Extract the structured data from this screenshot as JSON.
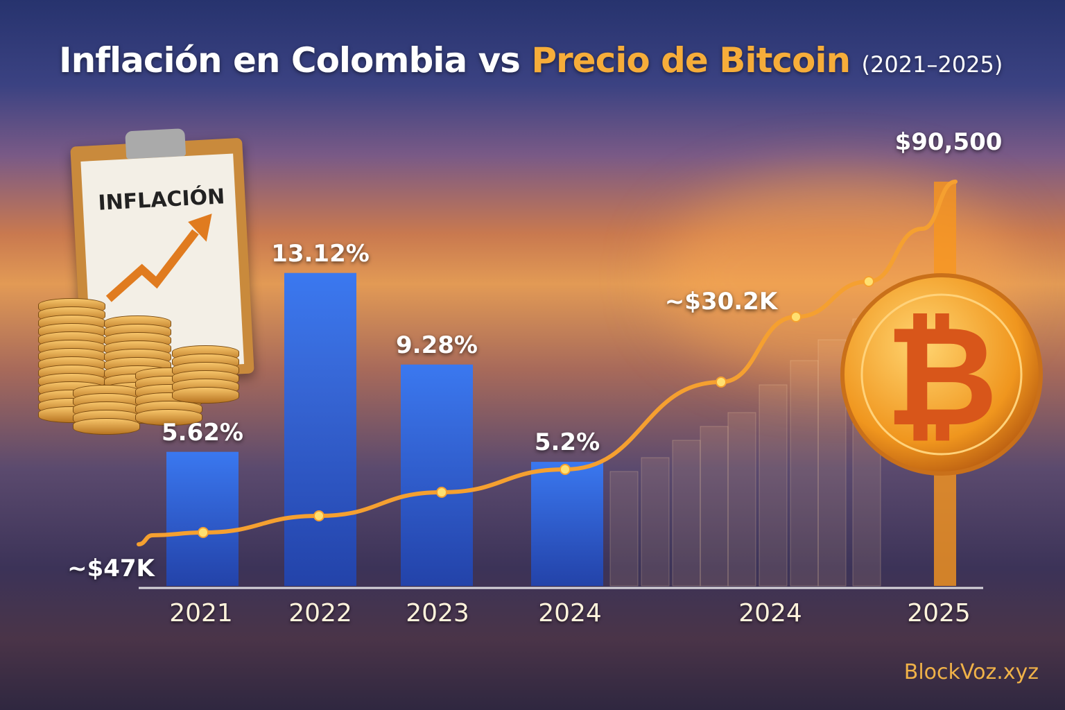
{
  "title": {
    "part1": "Inflación en Colombia vs",
    "part2": "Precio de Bitcoin",
    "years": "(2021–2025)"
  },
  "decor": {
    "clipboard_label": "INFLACIÓN",
    "coin_symbol": "₿",
    "watermark": "BlockVoz.xyz"
  },
  "colors": {
    "bars": "#2f62d8",
    "line": "#f5a030",
    "accent": "#f6ad3a"
  },
  "chart_data": {
    "type": "bar+line",
    "title": "Inflación en Colombia vs Precio de Bitcoin (2021–2025)",
    "x_tick_labels": [
      "2021",
      "2022",
      "2023",
      "2024",
      "2024",
      "2025"
    ],
    "bars": {
      "categories": [
        "2021",
        "2022",
        "2023",
        "2024"
      ],
      "values": [
        5.62,
        13.12,
        9.28,
        5.2
      ],
      "labels": [
        "5.62%",
        "13.12%",
        "9.28%",
        "5.2%"
      ]
    },
    "line": {
      "labeled_points": [
        {
          "x": "2021",
          "label": "~$47K"
        },
        {
          "x": "2024",
          "label": "~$30.2K"
        },
        {
          "x": "2025",
          "label": "$90,500"
        }
      ]
    },
    "grid": false,
    "legend": "none"
  }
}
